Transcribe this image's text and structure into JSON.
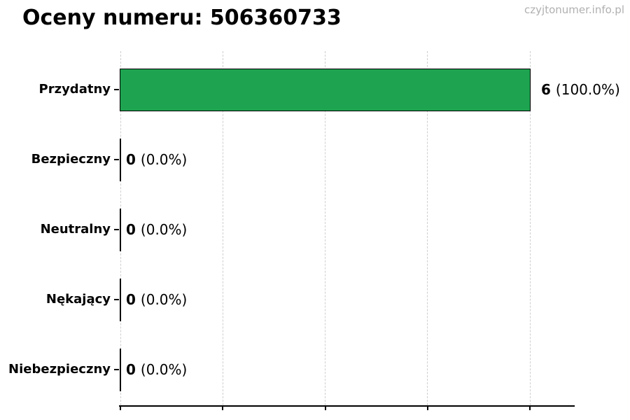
{
  "title": "Oceny numeru: 506360733",
  "watermark": "czyjtonumer.info.pl",
  "colors": {
    "bar_fill": "#1ea450",
    "bar_edge": "#000000",
    "gridline": "#cfcfcf",
    "watermark_text": "#b0b0b0",
    "text": "#000000",
    "background": "#ffffff"
  },
  "chart_data": {
    "type": "bar",
    "orientation": "horizontal",
    "title": "Oceny numeru: 506360733",
    "categories": [
      "Przydatny",
      "Bezpieczny",
      "Neutralny",
      "Nękający",
      "Niebezpieczny"
    ],
    "values": [
      6,
      0,
      0,
      0,
      0
    ],
    "value_labels": [
      "6",
      "0",
      "0",
      "0",
      "0"
    ],
    "pct_labels": [
      "(100.0%)",
      "(0.0%)",
      "(0.0%)",
      "(0.0%)",
      "(0.0%)"
    ],
    "total_ratings": 6,
    "xlabel": "",
    "ylabel": "",
    "xlim": [
      0,
      6.6
    ],
    "xticks": [
      0,
      1.5,
      3,
      4.5,
      6
    ],
    "xtick_labels_visible": false,
    "grid": "vertical-dashed",
    "legend": "none",
    "bar_color": "#1ea450",
    "bar_edge_color": "#000000"
  }
}
